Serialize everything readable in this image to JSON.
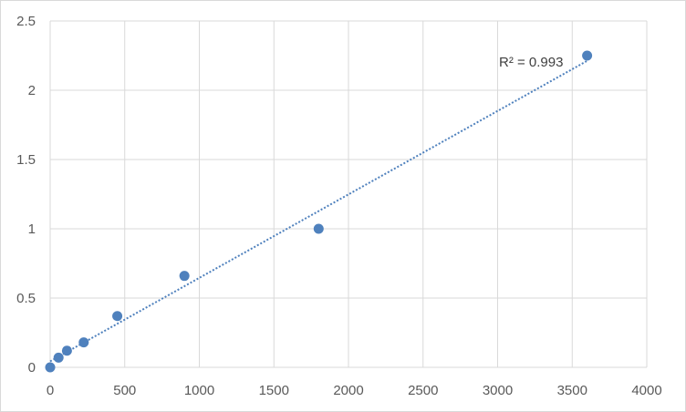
{
  "chart_data": {
    "type": "scatter",
    "title": "",
    "xlabel": "",
    "ylabel": "",
    "xlim": [
      0,
      4000
    ],
    "ylim": [
      0,
      2.5
    ],
    "x_ticks": [
      "0",
      "500",
      "1000",
      "1500",
      "2000",
      "2500",
      "3000",
      "3500",
      "4000"
    ],
    "y_ticks": [
      "0",
      "0.5",
      "1",
      "1.5",
      "2",
      "2.5"
    ],
    "grid": true,
    "legend": "none",
    "series": [
      {
        "points": [
          {
            "x": 0,
            "y": 0.0
          },
          {
            "x": 56.25,
            "y": 0.07
          },
          {
            "x": 112.5,
            "y": 0.12
          },
          {
            "x": 225,
            "y": 0.18
          },
          {
            "x": 450,
            "y": 0.37
          },
          {
            "x": 900,
            "y": 0.66
          },
          {
            "x": 1800,
            "y": 1.0
          },
          {
            "x": 3600,
            "y": 2.25
          }
        ],
        "color": "#4f81bd"
      }
    ],
    "trendline": {
      "type": "linear",
      "x_range": [
        0,
        3600
      ],
      "color": "#4f81bd",
      "style": "dotted",
      "label": "R² = 0.993"
    },
    "colors": {
      "grid": "#d9d9d9",
      "axis_text": "#595959",
      "marker": "#4f81bd"
    }
  }
}
